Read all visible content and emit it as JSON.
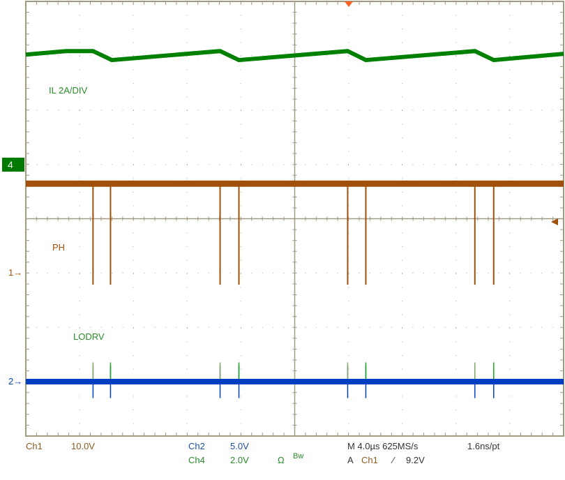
{
  "chart_data": {
    "type": "line",
    "time_per_div_us": 4.0,
    "divisions": {
      "x": 10,
      "y": 8
    },
    "xlim_us": [
      -20,
      20
    ],
    "grid": true,
    "series": [
      {
        "name": "IL 2A/DIV",
        "channel": "4",
        "color": "#008000",
        "volts_per_div": 2.0,
        "points_us_A": [
          [
            -20.0,
            4.05
          ],
          [
            -17.0,
            4.18
          ],
          [
            -15.0,
            4.18
          ],
          [
            -13.6,
            3.85
          ],
          [
            -5.55,
            4.18
          ],
          [
            -4.15,
            3.85
          ],
          [
            3.94,
            4.18
          ],
          [
            5.29,
            3.85
          ],
          [
            13.4,
            4.18
          ],
          [
            14.8,
            3.85
          ],
          [
            20.0,
            4.08
          ]
        ]
      },
      {
        "name": "PH",
        "channel": "1",
        "color": "#a0500a",
        "volts_per_div": 10.0,
        "baseline_V": 16.4,
        "spike_low_V": -2.2,
        "spike_times_us": [
          -15.0,
          -13.7,
          -5.55,
          -4.15,
          3.94,
          5.29,
          13.4,
          14.8
        ]
      },
      {
        "name": "LODRV",
        "channel": "2",
        "color": "#0040c0",
        "volts_per_div": 5.0,
        "baseline_V": 0.0,
        "spike_V": 1.0,
        "spike_times_us": [
          -15.0,
          -13.7,
          -5.55,
          -4.15,
          3.94,
          5.29,
          13.4,
          14.8
        ]
      }
    ]
  },
  "markers": {
    "ch4": "4",
    "ch1": "1",
    "ch2": "2"
  },
  "status": {
    "ch1_label": "Ch1",
    "ch1_scale": "10.0V",
    "ch2_label": "Ch2",
    "ch2_scale": "5.0V",
    "ch4_label": "Ch4",
    "ch4_scale": "2.0V",
    "ohm": "Ω",
    "bw": "Bw",
    "timebase": "M 4.0µs 625MS/s",
    "resolution": "1.6ns/pt",
    "trigger": "A",
    "trigger_ch": "Ch1",
    "trigger_slope": "⁄",
    "trigger_level": "9.2V"
  },
  "colors": {
    "grid": "#a09a80",
    "ch1": "#a0500a",
    "ch2": "#0040c0",
    "ch4": "#008000",
    "trigger": "#ff6020"
  }
}
